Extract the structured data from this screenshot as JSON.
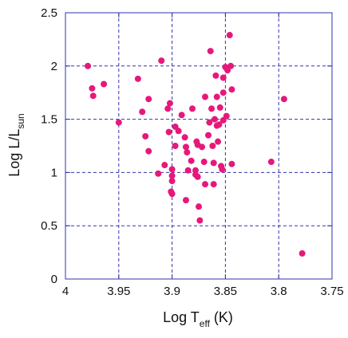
{
  "chart_data": {
    "type": "scatter",
    "title": "",
    "xlabel": {
      "main": "Log T",
      "sub": "eff",
      "suffix": " (K)"
    },
    "ylabel": {
      "main": "Log L/L",
      "sub": "sun"
    },
    "xlim": [
      4.0,
      3.75
    ],
    "ylim": [
      0,
      2.5
    ],
    "x_reversed": true,
    "xticks": [
      4.0,
      3.95,
      3.9,
      3.85,
      3.8,
      3.75
    ],
    "xtick_labels": [
      "4",
      "3.95",
      "3.9",
      "3.85",
      "3.8",
      "3.75"
    ],
    "yticks": [
      0,
      0.5,
      1.0,
      1.5,
      2.0,
      2.5
    ],
    "ytick_labels": [
      "0",
      "0.5",
      "1",
      "1.5",
      "2",
      "2.5"
    ],
    "grid": true,
    "marker_color": "#e6187a",
    "frame_color": "#3333aa",
    "grid_color": "#3333aa",
    "series": [
      {
        "points": [
          [
            3.979,
            2.0
          ],
          [
            3.975,
            1.79
          ],
          [
            3.974,
            1.72
          ],
          [
            3.964,
            1.83
          ],
          [
            3.95,
            1.47
          ],
          [
            3.932,
            1.88
          ],
          [
            3.928,
            1.57
          ],
          [
            3.925,
            1.34
          ],
          [
            3.922,
            1.2
          ],
          [
            3.922,
            1.69
          ],
          [
            3.91,
            2.05
          ],
          [
            3.913,
            0.99
          ],
          [
            3.907,
            1.07
          ],
          [
            3.904,
            1.6
          ],
          [
            3.902,
            1.65
          ],
          [
            3.903,
            1.38
          ],
          [
            3.901,
            0.82
          ],
          [
            3.9,
            1.03
          ],
          [
            3.9,
            0.97
          ],
          [
            3.9,
            0.92
          ],
          [
            3.9,
            0.8
          ],
          [
            3.897,
            1.43
          ],
          [
            3.897,
            1.25
          ],
          [
            3.894,
            1.39
          ],
          [
            3.891,
            1.54
          ],
          [
            3.888,
            1.33
          ],
          [
            3.887,
            1.24
          ],
          [
            3.886,
            1.19
          ],
          [
            3.885,
            1.02
          ],
          [
            3.887,
            0.74
          ],
          [
            3.882,
            1.11
          ],
          [
            3.881,
            1.6
          ],
          [
            3.878,
            0.98
          ],
          [
            3.877,
            1.29
          ],
          [
            3.876,
            0.96
          ],
          [
            3.878,
            1.02
          ],
          [
            3.876,
            1.26
          ],
          [
            3.875,
            0.68
          ],
          [
            3.874,
            0.55
          ],
          [
            3.872,
            1.24
          ],
          [
            3.87,
            1.1
          ],
          [
            3.869,
            0.89
          ],
          [
            3.869,
            1.71
          ],
          [
            3.866,
            1.35
          ],
          [
            3.865,
            1.47
          ],
          [
            3.864,
            2.14
          ],
          [
            3.863,
            1.6
          ],
          [
            3.862,
            1.25
          ],
          [
            3.861,
            1.09
          ],
          [
            3.861,
            0.89
          ],
          [
            3.86,
            1.5
          ],
          [
            3.859,
            1.91
          ],
          [
            3.858,
            1.44
          ],
          [
            3.858,
            1.71
          ],
          [
            3.857,
            1.29
          ],
          [
            3.856,
            1.45
          ],
          [
            3.855,
            1.61
          ],
          [
            3.854,
            1.06
          ],
          [
            3.852,
            1.89
          ],
          [
            3.853,
            1.03
          ],
          [
            3.852,
            1.75
          ],
          [
            3.852,
            1.49
          ],
          [
            3.85,
            1.99
          ],
          [
            3.849,
            1.53
          ],
          [
            3.848,
            1.96
          ],
          [
            3.846,
            2.29
          ],
          [
            3.845,
            2.0
          ],
          [
            3.844,
            1.78
          ],
          [
            3.844,
            1.08
          ],
          [
            3.807,
            1.1
          ],
          [
            3.795,
            1.69
          ],
          [
            3.778,
            0.24
          ]
        ]
      }
    ]
  }
}
